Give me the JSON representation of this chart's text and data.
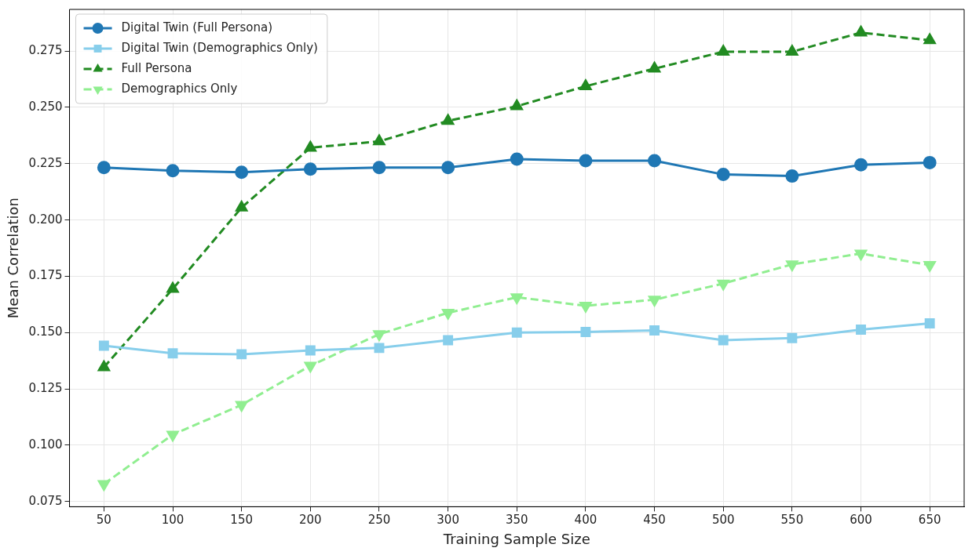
{
  "chart_data": {
    "type": "line",
    "xlabel": "Training Sample Size",
    "ylabel": "Mean Correlation",
    "x": [
      50,
      100,
      150,
      200,
      250,
      300,
      350,
      400,
      450,
      500,
      550,
      600,
      650
    ],
    "xlim": [
      25,
      675
    ],
    "xticks": [
      50,
      100,
      150,
      200,
      250,
      300,
      350,
      400,
      450,
      500,
      550,
      600,
      650
    ],
    "ylim": [
      0.0727,
      0.2935
    ],
    "yticks": [
      {
        "value": 0.075,
        "label": "0.075"
      },
      {
        "value": 0.1,
        "label": "0.100"
      },
      {
        "value": 0.125,
        "label": "0.125"
      },
      {
        "value": 0.15,
        "label": "0.150"
      },
      {
        "value": 0.175,
        "label": "0.175"
      },
      {
        "value": 0.2,
        "label": "0.200"
      },
      {
        "value": 0.225,
        "label": "0.225"
      },
      {
        "value": 0.25,
        "label": "0.250"
      },
      {
        "value": 0.275,
        "label": "0.275"
      }
    ],
    "grid": true,
    "legend": "top left",
    "series": [
      {
        "name": "Digital Twin (Full Persona)",
        "color": "#1f77b4",
        "marker": "circle",
        "line_style": "solid",
        "values": [
          0.2233,
          0.2219,
          0.2212,
          0.2226,
          0.2233,
          0.2233,
          0.227,
          0.2263,
          0.2263,
          0.2202,
          0.2195,
          0.2245,
          0.2255
        ]
      },
      {
        "name": "Digital Twin (Demographics Only)",
        "color": "#87ceeb",
        "marker": "square",
        "line_style": "solid",
        "values": [
          0.1442,
          0.1408,
          0.1404,
          0.1421,
          0.1432,
          0.1466,
          0.15,
          0.1503,
          0.151,
          0.1466,
          0.1476,
          0.1513,
          0.1541
        ]
      },
      {
        "name": "Full Persona",
        "color": "#228b22",
        "marker": "triangle",
        "line_style": "dashed",
        "values": [
          0.1346,
          0.1694,
          0.2055,
          0.2321,
          0.2349,
          0.244,
          0.2505,
          0.2594,
          0.2672,
          0.2747,
          0.2747,
          0.2832,
          0.2798
        ]
      },
      {
        "name": "Demographics Only",
        "color": "#90ee90",
        "marker": "triangle_down",
        "line_style": "dashed",
        "values": [
          0.0828,
          0.1047,
          0.1179,
          0.1353,
          0.1493,
          0.1588,
          0.1657,
          0.1619,
          0.1646,
          0.1718,
          0.1803,
          0.1851,
          0.18
        ]
      }
    ]
  }
}
